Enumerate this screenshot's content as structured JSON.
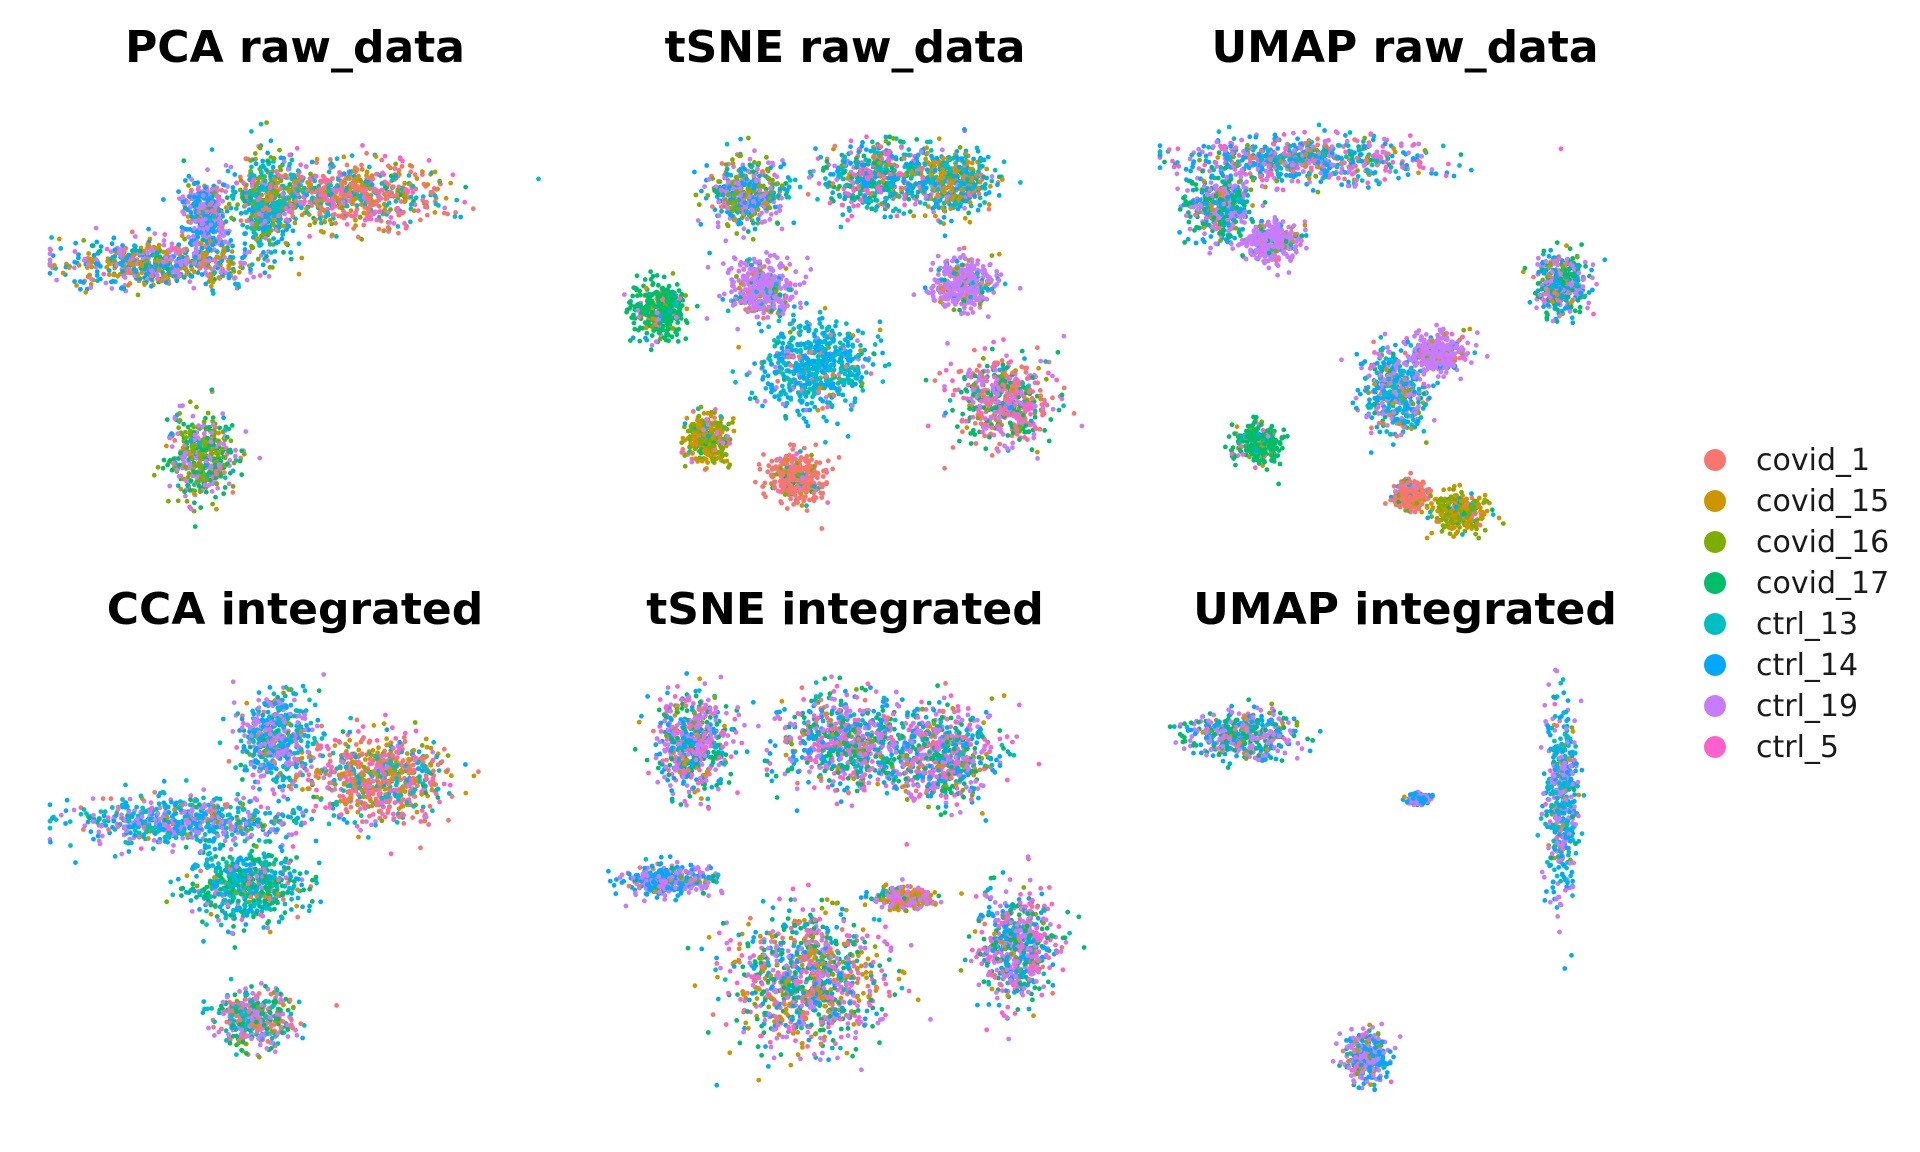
{
  "figure": {
    "legend": [
      {
        "label": "covid_1",
        "color": "#F8766D"
      },
      {
        "label": "covid_15",
        "color": "#CD9600"
      },
      {
        "label": "covid_16",
        "color": "#7CAE00"
      },
      {
        "label": "covid_17",
        "color": "#00BE67"
      },
      {
        "label": "ctrl_13",
        "color": "#00BFC4"
      },
      {
        "label": "ctrl_14",
        "color": "#00A9FF"
      },
      {
        "label": "ctrl_19",
        "color": "#C77CFF"
      },
      {
        "label": "ctrl_5",
        "color": "#FF61CC"
      }
    ]
  },
  "chart_data": [
    {
      "type": "scatter",
      "title": "PCA raw_data",
      "xlabel": "",
      "ylabel": "",
      "axes_visible": false,
      "grid": false,
      "legend_position": "right",
      "clusters": [
        {
          "center": [
            0.32,
            0.25
          ],
          "spread": [
            0.04,
            0.08
          ],
          "groups": [
            "ctrl_19",
            "ctrl_14"
          ]
        },
        {
          "center": [
            0.22,
            0.36
          ],
          "spread": [
            0.18,
            0.05
          ],
          "groups": [
            "ctrl_19",
            "ctrl_14",
            "covid_15"
          ]
        },
        {
          "center": [
            0.44,
            0.22
          ],
          "spread": [
            0.05,
            0.1
          ],
          "groups": [
            "ctrl_14",
            "ctrl_13",
            "covid_16"
          ]
        },
        {
          "center": [
            0.31,
            0.81
          ],
          "spread": [
            0.06,
            0.09
          ],
          "groups": [
            "ctrl_19",
            "covid_17",
            "covid_16"
          ]
        },
        {
          "center": [
            0.62,
            0.2
          ],
          "spread": [
            0.16,
            0.07
          ],
          "groups": [
            "covid_1",
            "covid_15",
            "ctrl_5",
            "ctrl_13"
          ]
        }
      ]
    },
    {
      "type": "scatter",
      "title": "tSNE raw_data",
      "xlabel": "",
      "ylabel": "",
      "axes_visible": false,
      "grid": false,
      "legend_position": "right",
      "clusters": [
        {
          "center": [
            0.12,
            0.47
          ],
          "spread": [
            0.05,
            0.06
          ],
          "groups": [
            "covid_17"
          ]
        },
        {
          "center": [
            0.44,
            0.6
          ],
          "spread": [
            0.1,
            0.09
          ],
          "groups": [
            "ctrl_14",
            "ctrl_13"
          ]
        },
        {
          "center": [
            0.4,
            0.86
          ],
          "spread": [
            0.05,
            0.05
          ],
          "groups": [
            "covid_1"
          ]
        },
        {
          "center": [
            0.22,
            0.77
          ],
          "spread": [
            0.04,
            0.05
          ],
          "groups": [
            "covid_15",
            "covid_16"
          ]
        },
        {
          "center": [
            0.33,
            0.42
          ],
          "spread": [
            0.06,
            0.06
          ],
          "groups": [
            "ctrl_19"
          ]
        },
        {
          "center": [
            0.74,
            0.41
          ],
          "spread": [
            0.06,
            0.05
          ],
          "groups": [
            "ctrl_19"
          ]
        },
        {
          "center": [
            0.82,
            0.68
          ],
          "spread": [
            0.09,
            0.09
          ],
          "groups": [
            "covid_17",
            "ctrl_19",
            "covid_1",
            "ctrl_5"
          ]
        },
        {
          "center": [
            0.56,
            0.16
          ],
          "spread": [
            0.1,
            0.07
          ],
          "groups": [
            "ctrl_14",
            "ctrl_5",
            "covid_17",
            "ctrl_13"
          ]
        },
        {
          "center": [
            0.3,
            0.2
          ],
          "spread": [
            0.07,
            0.07
          ],
          "groups": [
            "ctrl_19",
            "ctrl_14",
            "covid_16"
          ]
        },
        {
          "center": [
            0.72,
            0.17
          ],
          "spread": [
            0.07,
            0.07
          ],
          "groups": [
            "ctrl_13",
            "ctrl_14",
            "covid_15"
          ]
        }
      ]
    },
    {
      "type": "scatter",
      "title": "UMAP raw_data",
      "xlabel": "",
      "ylabel": "",
      "axes_visible": false,
      "grid": false,
      "legend_position": "right",
      "clusters": [
        {
          "center": [
            0.3,
            0.12
          ],
          "spread": [
            0.22,
            0.05
          ],
          "groups": [
            "ctrl_14",
            "ctrl_19",
            "ctrl_13",
            "ctrl_5"
          ]
        },
        {
          "center": [
            0.12,
            0.23
          ],
          "spread": [
            0.06,
            0.07
          ],
          "groups": [
            "ctrl_14",
            "covid_17",
            "ctrl_19"
          ]
        },
        {
          "center": [
            0.23,
            0.31
          ],
          "spread": [
            0.05,
            0.04
          ],
          "groups": [
            "ctrl_19"
          ]
        },
        {
          "center": [
            0.82,
            0.41
          ],
          "spread": [
            0.05,
            0.06
          ],
          "groups": [
            "covid_17",
            "ctrl_14",
            "ctrl_19"
          ]
        },
        {
          "center": [
            0.2,
            0.78
          ],
          "spread": [
            0.04,
            0.04
          ],
          "groups": [
            "covid_17"
          ]
        },
        {
          "center": [
            0.48,
            0.66
          ],
          "spread": [
            0.06,
            0.09
          ],
          "groups": [
            "ctrl_14",
            "ctrl_13",
            "ctrl_19"
          ]
        },
        {
          "center": [
            0.57,
            0.57
          ],
          "spread": [
            0.05,
            0.04
          ],
          "groups": [
            "ctrl_19"
          ]
        },
        {
          "center": [
            0.51,
            0.9
          ],
          "spread": [
            0.03,
            0.03
          ],
          "groups": [
            "covid_1"
          ]
        },
        {
          "center": [
            0.61,
            0.94
          ],
          "spread": [
            0.05,
            0.04
          ],
          "groups": [
            "covid_16",
            "covid_15"
          ]
        }
      ]
    },
    {
      "type": "scatter",
      "title": "CCA integrated",
      "xlabel": "",
      "ylabel": "",
      "axes_visible": false,
      "grid": false,
      "legend_position": "right",
      "clusters": [
        {
          "center": [
            0.46,
            0.16
          ],
          "spread": [
            0.07,
            0.09
          ],
          "groups": [
            "ctrl_19",
            "ctrl_14",
            "ctrl_13"
          ]
        },
        {
          "center": [
            0.27,
            0.35
          ],
          "spread": [
            0.2,
            0.05
          ],
          "groups": [
            "ctrl_19",
            "ctrl_14",
            "ctrl_13"
          ]
        },
        {
          "center": [
            0.4,
            0.5
          ],
          "spread": [
            0.1,
            0.08
          ],
          "groups": [
            "ctrl_14",
            "covid_17",
            "ctrl_13"
          ]
        },
        {
          "center": [
            0.42,
            0.81
          ],
          "spread": [
            0.07,
            0.06
          ],
          "groups": [
            "ctrl_19",
            "covid_17",
            "ctrl_13",
            "covid_1"
          ]
        },
        {
          "center": [
            0.67,
            0.25
          ],
          "spread": [
            0.13,
            0.09
          ],
          "groups": [
            "ctrl_13",
            "covid_1",
            "ctrl_5",
            "covid_15"
          ]
        }
      ]
    },
    {
      "type": "scatter",
      "title": "tSNE integrated",
      "xlabel": "",
      "ylabel": "",
      "axes_visible": false,
      "grid": false,
      "legend_position": "right",
      "clusters": [
        {
          "center": [
            0.19,
            0.17
          ],
          "spread": [
            0.07,
            0.1
          ],
          "groups": [
            "ctrl_19",
            "ctrl_14",
            "ctrl_5",
            "covid_17"
          ]
        },
        {
          "center": [
            0.5,
            0.17
          ],
          "spread": [
            0.12,
            0.1
          ],
          "groups": [
            "ctrl_14",
            "ctrl_5",
            "ctrl_19",
            "covid_17"
          ]
        },
        {
          "center": [
            0.7,
            0.2
          ],
          "spread": [
            0.1,
            0.1
          ],
          "groups": [
            "ctrl_19",
            "ctrl_14",
            "ctrl_5",
            "covid_17"
          ]
        },
        {
          "center": [
            0.42,
            0.72
          ],
          "spread": [
            0.14,
            0.14
          ],
          "groups": [
            "covid_17",
            "ctrl_19",
            "ctrl_14",
            "covid_15",
            "ctrl_5"
          ]
        },
        {
          "center": [
            0.14,
            0.49
          ],
          "spread": [
            0.08,
            0.03
          ],
          "groups": [
            "ctrl_19",
            "ctrl_14"
          ]
        },
        {
          "center": [
            0.85,
            0.64
          ],
          "spread": [
            0.07,
            0.12
          ],
          "groups": [
            "covid_17",
            "ctrl_5",
            "ctrl_19",
            "ctrl_14"
          ]
        },
        {
          "center": [
            0.62,
            0.53
          ],
          "spread": [
            0.05,
            0.02
          ],
          "groups": [
            "ctrl_19",
            "covid_15"
          ]
        }
      ]
    },
    {
      "type": "scatter",
      "title": "UMAP integrated",
      "xlabel": "",
      "ylabel": "",
      "axes_visible": false,
      "grid": false,
      "legend_position": "right",
      "clusters": [
        {
          "center": [
            0.17,
            0.15
          ],
          "spread": [
            0.1,
            0.05
          ],
          "groups": [
            "ctrl_19",
            "ctrl_14",
            "covid_17"
          ]
        },
        {
          "center": [
            0.82,
            0.3
          ],
          "spread": [
            0.03,
            0.2
          ],
          "groups": [
            "ctrl_19",
            "ctrl_14",
            "ctrl_13"
          ]
        },
        {
          "center": [
            0.53,
            0.3
          ],
          "spread": [
            0.02,
            0.01
          ],
          "groups": [
            "ctrl_19",
            "ctrl_14"
          ]
        },
        {
          "center": [
            0.42,
            0.9
          ],
          "spread": [
            0.04,
            0.05
          ],
          "groups": [
            "ctrl_19",
            "ctrl_14"
          ]
        }
      ]
    }
  ]
}
